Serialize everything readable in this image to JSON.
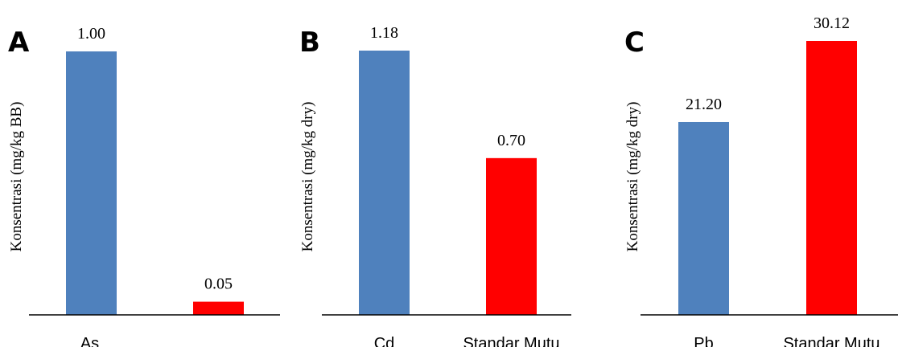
{
  "colors": {
    "blue": "#4F81BD",
    "red": "#FF0000",
    "axis": "#000000"
  },
  "chart_data": [
    {
      "type": "bar",
      "panel": "A",
      "ylabel": "Konsentrasi (mg/kg BB)",
      "categories": [
        "As",
        ""
      ],
      "values": [
        1.0,
        0.05
      ],
      "value_labels": [
        "1.00",
        "0.05"
      ],
      "bar_colors": [
        "blue",
        "red"
      ],
      "ylim": [
        0,
        1.0
      ]
    },
    {
      "type": "bar",
      "panel": "B",
      "ylabel": "Konsentrasi (mg/kg dry)",
      "categories": [
        "Cd",
        "Standar Mutu"
      ],
      "values": [
        1.18,
        0.7
      ],
      "value_labels": [
        "1.18",
        "0.70"
      ],
      "bar_colors": [
        "blue",
        "red"
      ],
      "ylim": [
        0,
        1.18
      ]
    },
    {
      "type": "bar",
      "panel": "C",
      "ylabel": "Konsentrasi (mg/kg dry)",
      "categories": [
        "Pb",
        "Standar Mutu"
      ],
      "values": [
        21.2,
        30.12
      ],
      "value_labels": [
        "21.20",
        "30.12"
      ],
      "bar_colors": [
        "blue",
        "red"
      ],
      "ylim": [
        0,
        30.12
      ]
    }
  ]
}
